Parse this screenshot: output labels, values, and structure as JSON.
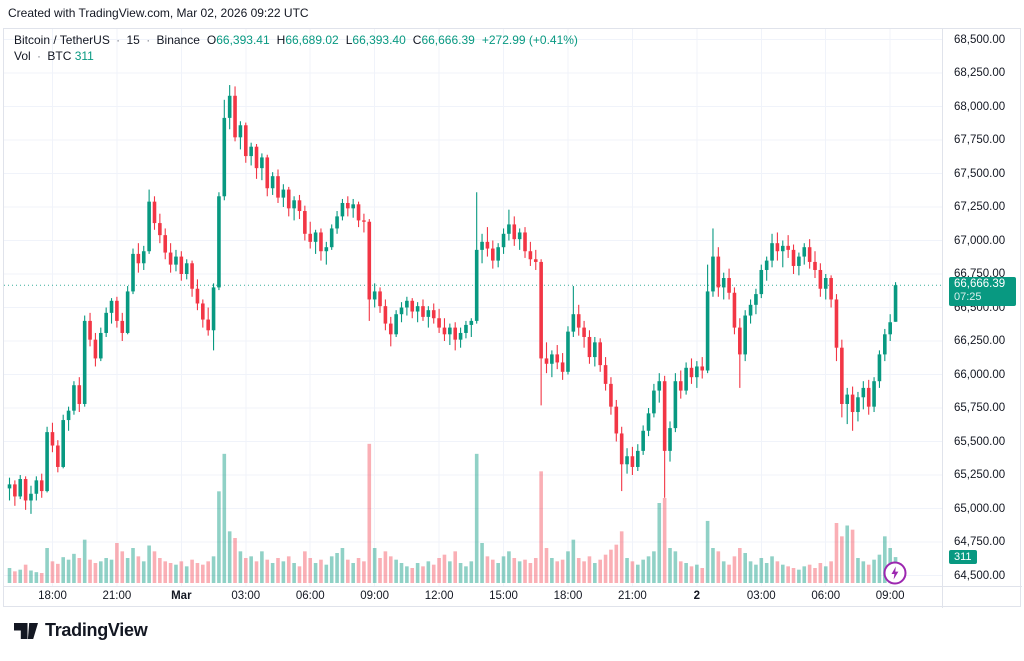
{
  "header": {
    "attribution": "Created with TradingView.com, Mar 02, 2026 09:22 UTC"
  },
  "legend": {
    "title": "Bitcoin / TetherUS",
    "separator": "·",
    "interval": "15",
    "exchange": "Binance",
    "ohlc": [
      [
        "O",
        "66,393.41"
      ],
      [
        "H",
        "66,689.02"
      ],
      [
        "L",
        "66,393.40"
      ],
      [
        "C",
        "66,666.39"
      ]
    ],
    "change": "+272.99 (+0.41%)",
    "vol_label": "Vol",
    "vol_unit": "BTC",
    "vol_value": "311"
  },
  "price_axis": {
    "labels": [
      "68,500.00",
      "68,250.00",
      "68,000.00",
      "67,750.00",
      "67,500.00",
      "67,250.00",
      "67,000.00",
      "66,750.00",
      "66,500.00",
      "66,250.00",
      "66,000.00",
      "65,750.00",
      "65,500.00",
      "65,250.00",
      "65,000.00",
      "64,750.00",
      "64,500.00"
    ],
    "last_price_badge": {
      "price": "66,666.39",
      "countdown": "07:25"
    },
    "volume_badge": "311"
  },
  "time_axis": {
    "labels": [
      {
        "text": "18:00",
        "i": 8,
        "bold": false
      },
      {
        "text": "21:00",
        "i": 20,
        "bold": false
      },
      {
        "text": "Mar",
        "i": 32,
        "bold": true
      },
      {
        "text": "03:00",
        "i": 44,
        "bold": false
      },
      {
        "text": "06:00",
        "i": 56,
        "bold": false
      },
      {
        "text": "09:00",
        "i": 68,
        "bold": false
      },
      {
        "text": "12:00",
        "i": 80,
        "bold": false
      },
      {
        "text": "15:00",
        "i": 92,
        "bold": false
      },
      {
        "text": "18:00",
        "i": 104,
        "bold": false
      },
      {
        "text": "21:00",
        "i": 116,
        "bold": false
      },
      {
        "text": "2",
        "i": 128,
        "bold": true
      },
      {
        "text": "03:00",
        "i": 140,
        "bold": false
      },
      {
        "text": "06:00",
        "i": 152,
        "bold": false
      },
      {
        "text": "09:00",
        "i": 164,
        "bold": false
      }
    ]
  },
  "footer": {
    "logo_text": "TradingView"
  },
  "chart_data": {
    "type": "candlestick",
    "title": "Bitcoin / TetherUS · 15 · Binance",
    "interval_minutes": 15,
    "price_axis_range": [
      64500,
      68500
    ],
    "price_axis_step": 250,
    "last_price": 66666.39,
    "countdown": "07:25",
    "last_volume_btc": 311,
    "colors": {
      "up": "#089981",
      "down": "#f23645",
      "vol_up": "rgba(8,153,129,0.45)",
      "vol_down": "rgba(242,54,69,0.40)",
      "grid": "#f0f3fa",
      "last_price_line": "#089981",
      "badge": "#089981",
      "flash": "#9c27b0",
      "text": "#131722"
    },
    "candles": [
      [
        65150,
        65230,
        65060,
        65180
      ],
      [
        65180,
        65210,
        65020,
        65090
      ],
      [
        65090,
        65250,
        65070,
        65220
      ],
      [
        65220,
        65240,
        64990,
        65060
      ],
      [
        65060,
        65170,
        64960,
        65110
      ],
      [
        65110,
        65240,
        65060,
        65210
      ],
      [
        65210,
        65260,
        65080,
        65130
      ],
      [
        65130,
        65610,
        65120,
        65570
      ],
      [
        65570,
        65640,
        65420,
        65470
      ],
      [
        65470,
        65510,
        65270,
        65310
      ],
      [
        65310,
        65700,
        65300,
        65660
      ],
      [
        65660,
        65760,
        65580,
        65730
      ],
      [
        65730,
        65950,
        65700,
        65920
      ],
      [
        65920,
        65980,
        65720,
        65780
      ],
      [
        65780,
        66440,
        65760,
        66400
      ],
      [
        66400,
        66460,
        66210,
        66260
      ],
      [
        66260,
        66310,
        66060,
        66120
      ],
      [
        66120,
        66350,
        66100,
        66310
      ],
      [
        66310,
        66500,
        66280,
        66460
      ],
      [
        66460,
        66570,
        66380,
        66550
      ],
      [
        66550,
        66580,
        66350,
        66400
      ],
      [
        66400,
        66460,
        66250,
        66310
      ],
      [
        66310,
        66660,
        66300,
        66620
      ],
      [
        66620,
        66940,
        66600,
        66900
      ],
      [
        66900,
        66980,
        66760,
        66830
      ],
      [
        66830,
        66960,
        66780,
        66920
      ],
      [
        66920,
        67380,
        66900,
        67290
      ],
      [
        67290,
        67330,
        67080,
        67130
      ],
      [
        67130,
        67200,
        66980,
        67040
      ],
      [
        67040,
        67090,
        66860,
        66910
      ],
      [
        66910,
        66980,
        66760,
        66820
      ],
      [
        66820,
        66930,
        66770,
        66880
      ],
      [
        66880,
        66920,
        66700,
        66750
      ],
      [
        66750,
        66860,
        66710,
        66830
      ],
      [
        66830,
        66850,
        66580,
        66640
      ],
      [
        66640,
        66710,
        66480,
        66530
      ],
      [
        66530,
        66560,
        66350,
        66410
      ],
      [
        66410,
        66500,
        66290,
        66330
      ],
      [
        66330,
        66680,
        66180,
        66650
      ],
      [
        66650,
        67360,
        66630,
        67330
      ],
      [
        67330,
        68050,
        67300,
        67915
      ],
      [
        67915,
        68160,
        67830,
        68080
      ],
      [
        68080,
        68150,
        67740,
        67770
      ],
      [
        67770,
        67890,
        67680,
        67860
      ],
      [
        67860,
        67880,
        67580,
        67630
      ],
      [
        67630,
        67730,
        67560,
        67700
      ],
      [
        67700,
        67720,
        67460,
        67540
      ],
      [
        67540,
        67650,
        67450,
        67620
      ],
      [
        67620,
        67640,
        67330,
        67390
      ],
      [
        67390,
        67510,
        67340,
        67480
      ],
      [
        67480,
        67530,
        67280,
        67320
      ],
      [
        67320,
        67420,
        67250,
        67380
      ],
      [
        67380,
        67400,
        67180,
        67240
      ],
      [
        67240,
        67330,
        67150,
        67300
      ],
      [
        67300,
        67340,
        67160,
        67220
      ],
      [
        67220,
        67260,
        67000,
        67050
      ],
      [
        67050,
        67140,
        66940,
        66990
      ],
      [
        66990,
        67080,
        66900,
        67060
      ],
      [
        67060,
        67090,
        66850,
        66920
      ],
      [
        66920,
        66990,
        66820,
        66950
      ],
      [
        66950,
        67120,
        66930,
        67090
      ],
      [
        67090,
        67220,
        67050,
        67180
      ],
      [
        67180,
        67310,
        67150,
        67280
      ],
      [
        67280,
        67330,
        67180,
        67240
      ],
      [
        67240,
        67310,
        67170,
        67270
      ],
      [
        67270,
        67290,
        67100,
        67150
      ],
      [
        67150,
        67200,
        67060,
        67140
      ],
      [
        67140,
        67160,
        66400,
        66560
      ],
      [
        66560,
        66680,
        66500,
        66620
      ],
      [
        66620,
        66650,
        66460,
        66510
      ],
      [
        66510,
        66560,
        66330,
        66380
      ],
      [
        66380,
        66430,
        66210,
        66300
      ],
      [
        66300,
        66480,
        66280,
        66450
      ],
      [
        66450,
        66540,
        66390,
        66500
      ],
      [
        66500,
        66580,
        66440,
        66550
      ],
      [
        66550,
        66570,
        66420,
        66470
      ],
      [
        66470,
        66540,
        66390,
        66510
      ],
      [
        66510,
        66560,
        66400,
        66430
      ],
      [
        66430,
        66510,
        66350,
        66480
      ],
      [
        66480,
        66530,
        66380,
        66420
      ],
      [
        66420,
        66490,
        66310,
        66350
      ],
      [
        66350,
        66420,
        66250,
        66300
      ],
      [
        66300,
        66380,
        66220,
        66350
      ],
      [
        66350,
        66390,
        66180,
        66260
      ],
      [
        66260,
        66350,
        66200,
        66310
      ],
      [
        66310,
        66400,
        66270,
        66370
      ],
      [
        66370,
        66420,
        66280,
        66400
      ],
      [
        66400,
        67360,
        66380,
        66930
      ],
      [
        66930,
        67050,
        66830,
        66990
      ],
      [
        66990,
        67100,
        66880,
        66940
      ],
      [
        66940,
        67000,
        66790,
        66850
      ],
      [
        66850,
        66980,
        66800,
        66950
      ],
      [
        66950,
        67090,
        66900,
        67050
      ],
      [
        67050,
        67230,
        67000,
        67120
      ],
      [
        67120,
        67180,
        66960,
        67010
      ],
      [
        67010,
        67090,
        66930,
        67060
      ],
      [
        67060,
        67100,
        66870,
        66920
      ],
      [
        66920,
        66990,
        66810,
        66860
      ],
      [
        66860,
        66930,
        66780,
        66840
      ],
      [
        66840,
        66860,
        65770,
        66120
      ],
      [
        66120,
        66240,
        66010,
        66080
      ],
      [
        66080,
        66180,
        65980,
        66150
      ],
      [
        66150,
        66220,
        66040,
        66090
      ],
      [
        66090,
        66160,
        65960,
        66020
      ],
      [
        66020,
        66360,
        66000,
        66320
      ],
      [
        66320,
        66660,
        66280,
        66450
      ],
      [
        66450,
        66520,
        66290,
        66350
      ],
      [
        66350,
        66400,
        66200,
        66280
      ],
      [
        66280,
        66330,
        66080,
        66130
      ],
      [
        66130,
        66280,
        66060,
        66240
      ],
      [
        66240,
        66270,
        66020,
        66070
      ],
      [
        66070,
        66130,
        65880,
        65930
      ],
      [
        65930,
        65980,
        65700,
        65760
      ],
      [
        65760,
        65810,
        65500,
        65560
      ],
      [
        65560,
        65610,
        65130,
        65330
      ],
      [
        65330,
        65450,
        65260,
        65390
      ],
      [
        65390,
        65460,
        65250,
        65310
      ],
      [
        65310,
        65480,
        65280,
        65430
      ],
      [
        65430,
        65620,
        65400,
        65580
      ],
      [
        65580,
        65750,
        65540,
        65710
      ],
      [
        65710,
        65930,
        65680,
        65880
      ],
      [
        65880,
        66010,
        65790,
        65950
      ],
      [
        65950,
        65990,
        65080,
        65430
      ],
      [
        65430,
        65650,
        65350,
        65600
      ],
      [
        65600,
        66010,
        65570,
        65950
      ],
      [
        65950,
        66030,
        65820,
        65880
      ],
      [
        65880,
        66090,
        65850,
        66050
      ],
      [
        66050,
        66120,
        65930,
        65980
      ],
      [
        65980,
        66100,
        65900,
        66060
      ],
      [
        66060,
        66130,
        65970,
        66030
      ],
      [
        66030,
        66820,
        66010,
        66620
      ],
      [
        66620,
        67090,
        66580,
        66880
      ],
      [
        66880,
        66950,
        66580,
        66650
      ],
      [
        66650,
        66760,
        66560,
        66720
      ],
      [
        66720,
        66790,
        66560,
        66610
      ],
      [
        66610,
        66650,
        66300,
        66350
      ],
      [
        66350,
        66420,
        65900,
        66150
      ],
      [
        66150,
        66480,
        66100,
        66440
      ],
      [
        66440,
        66560,
        66380,
        66520
      ],
      [
        66520,
        66640,
        66450,
        66600
      ],
      [
        66600,
        66820,
        66570,
        66780
      ],
      [
        66780,
        66880,
        66700,
        66850
      ],
      [
        66850,
        67050,
        66800,
        66980
      ],
      [
        66980,
        67060,
        66850,
        66920
      ],
      [
        66920,
        67000,
        66800,
        66960
      ],
      [
        66960,
        67040,
        66870,
        66930
      ],
      [
        66930,
        66970,
        66750,
        66810
      ],
      [
        66810,
        66910,
        66740,
        66880
      ],
      [
        66880,
        66980,
        66820,
        66950
      ],
      [
        66950,
        67010,
        66790,
        66840
      ],
      [
        66840,
        66920,
        66720,
        66780
      ],
      [
        66780,
        66830,
        66580,
        66640
      ],
      [
        66640,
        66750,
        66560,
        66720
      ],
      [
        66720,
        66740,
        66500,
        66560
      ],
      [
        66560,
        66600,
        66100,
        66200
      ],
      [
        66200,
        66260,
        65680,
        65780
      ],
      [
        65780,
        65900,
        65630,
        65850
      ],
      [
        65850,
        65910,
        65580,
        65720
      ],
      [
        65720,
        65870,
        65650,
        65830
      ],
      [
        65830,
        65950,
        65740,
        65900
      ],
      [
        65900,
        65960,
        65700,
        65760
      ],
      [
        65760,
        65980,
        65720,
        65950
      ],
      [
        65950,
        66180,
        65900,
        66150
      ],
      [
        66150,
        66340,
        66100,
        66300
      ],
      [
        66300,
        66450,
        66250,
        66390
      ],
      [
        66393.41,
        66689.02,
        66393.4,
        66666.39
      ]
    ],
    "volumes": [
      180,
      140,
      160,
      220,
      150,
      130,
      120,
      420,
      260,
      230,
      310,
      280,
      350,
      300,
      520,
      280,
      240,
      260,
      300,
      280,
      480,
      380,
      300,
      420,
      320,
      260,
      450,
      380,
      300,
      260,
      240,
      220,
      260,
      200,
      280,
      240,
      220,
      260,
      320,
      1100,
      1550,
      620,
      540,
      380,
      300,
      320,
      260,
      380,
      280,
      240,
      300,
      260,
      320,
      240,
      200,
      380,
      300,
      240,
      280,
      220,
      320,
      360,
      420,
      280,
      240,
      300,
      260,
      1670,
      420,
      300,
      380,
      320,
      280,
      240,
      200,
      180,
      240,
      200,
      260,
      220,
      300,
      340,
      260,
      380,
      240,
      200,
      260,
      1550,
      480,
      320,
      280,
      240,
      320,
      380,
      300,
      260,
      280,
      240,
      300,
      1340,
      420,
      300,
      260,
      280,
      380,
      520,
      300,
      260,
      320,
      240,
      280,
      340,
      400,
      460,
      620,
      300,
      260,
      220,
      280,
      320,
      380,
      960,
      1020,
      420,
      380,
      260,
      240,
      200,
      220,
      180,
      745,
      420,
      380,
      260,
      220,
      320,
      420,
      360,
      260,
      220,
      300,
      240,
      320,
      260,
      220,
      200,
      180,
      160,
      200,
      220,
      180,
      240,
      200,
      260,
      720,
      560,
      690,
      640,
      300,
      260,
      220,
      280,
      340,
      560,
      420,
      311
    ]
  }
}
